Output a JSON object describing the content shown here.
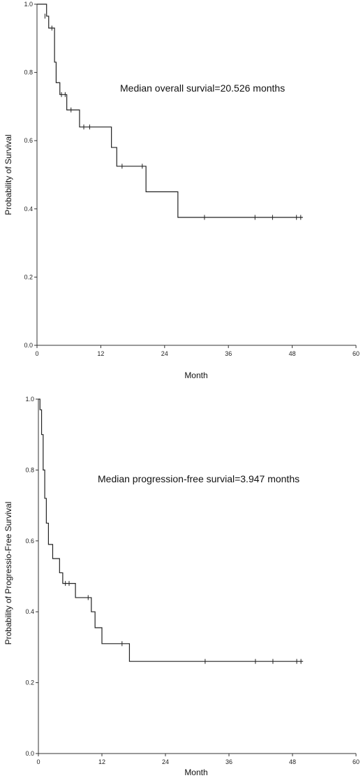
{
  "chart_data": [
    {
      "type": "line",
      "subtype": "kaplan-meier",
      "title": "",
      "annotation": "Median overall survial=20.526 months",
      "xlabel": "Month",
      "ylabel": "Probability of Survival",
      "xlim": [
        0,
        60
      ],
      "ylim": [
        0,
        1
      ],
      "xticks": [
        0,
        12,
        24,
        36,
        48,
        60
      ],
      "yticks": [
        0.0,
        0.2,
        0.4,
        0.6,
        0.8,
        1.0
      ],
      "grid": false,
      "steps": [
        [
          0,
          1.0
        ],
        [
          1.8,
          0.965
        ],
        [
          2.2,
          0.93
        ],
        [
          3.3,
          0.83
        ],
        [
          3.6,
          0.77
        ],
        [
          4.3,
          0.735
        ],
        [
          5.6,
          0.69
        ],
        [
          8.0,
          0.64
        ],
        [
          14.0,
          0.58
        ],
        [
          15.0,
          0.525
        ],
        [
          20.5,
          0.45
        ],
        [
          26.5,
          0.375
        ],
        [
          50.0,
          0.375
        ]
      ],
      "censored": [
        [
          1.5,
          0.965
        ],
        [
          2.8,
          0.93
        ],
        [
          4.6,
          0.735
        ],
        [
          5.3,
          0.735
        ],
        [
          6.4,
          0.69
        ],
        [
          8.8,
          0.64
        ],
        [
          9.9,
          0.64
        ],
        [
          16.0,
          0.525
        ],
        [
          19.8,
          0.525
        ],
        [
          31.5,
          0.375
        ],
        [
          41.0,
          0.375
        ],
        [
          44.3,
          0.375
        ],
        [
          48.8,
          0.375
        ],
        [
          49.6,
          0.375
        ]
      ]
    },
    {
      "type": "line",
      "subtype": "kaplan-meier",
      "title": "",
      "annotation": "Median progression-free survial=3.947 months",
      "xlabel": "Month",
      "ylabel": "Probability of Progressio-Free Survival",
      "xlim": [
        0,
        60
      ],
      "ylim": [
        0,
        1
      ],
      "xticks": [
        0,
        12,
        24,
        36,
        48,
        60
      ],
      "yticks": [
        0.0,
        0.2,
        0.4,
        0.6,
        0.8,
        1.0
      ],
      "grid": false,
      "steps": [
        [
          0,
          1.0
        ],
        [
          0.3,
          0.97
        ],
        [
          0.6,
          0.9
        ],
        [
          0.9,
          0.8
        ],
        [
          1.2,
          0.72
        ],
        [
          1.5,
          0.65
        ],
        [
          1.9,
          0.59
        ],
        [
          2.7,
          0.55
        ],
        [
          4.0,
          0.51
        ],
        [
          4.6,
          0.48
        ],
        [
          7.0,
          0.44
        ],
        [
          10.0,
          0.4
        ],
        [
          10.7,
          0.355
        ],
        [
          12.0,
          0.31
        ],
        [
          17.2,
          0.26
        ],
        [
          50.0,
          0.26
        ]
      ],
      "censored": [
        [
          5.1,
          0.48
        ],
        [
          5.8,
          0.48
        ],
        [
          9.4,
          0.44
        ],
        [
          15.8,
          0.31
        ],
        [
          31.5,
          0.26
        ],
        [
          41.0,
          0.26
        ],
        [
          44.3,
          0.26
        ],
        [
          48.8,
          0.26
        ],
        [
          49.6,
          0.26
        ]
      ]
    }
  ]
}
